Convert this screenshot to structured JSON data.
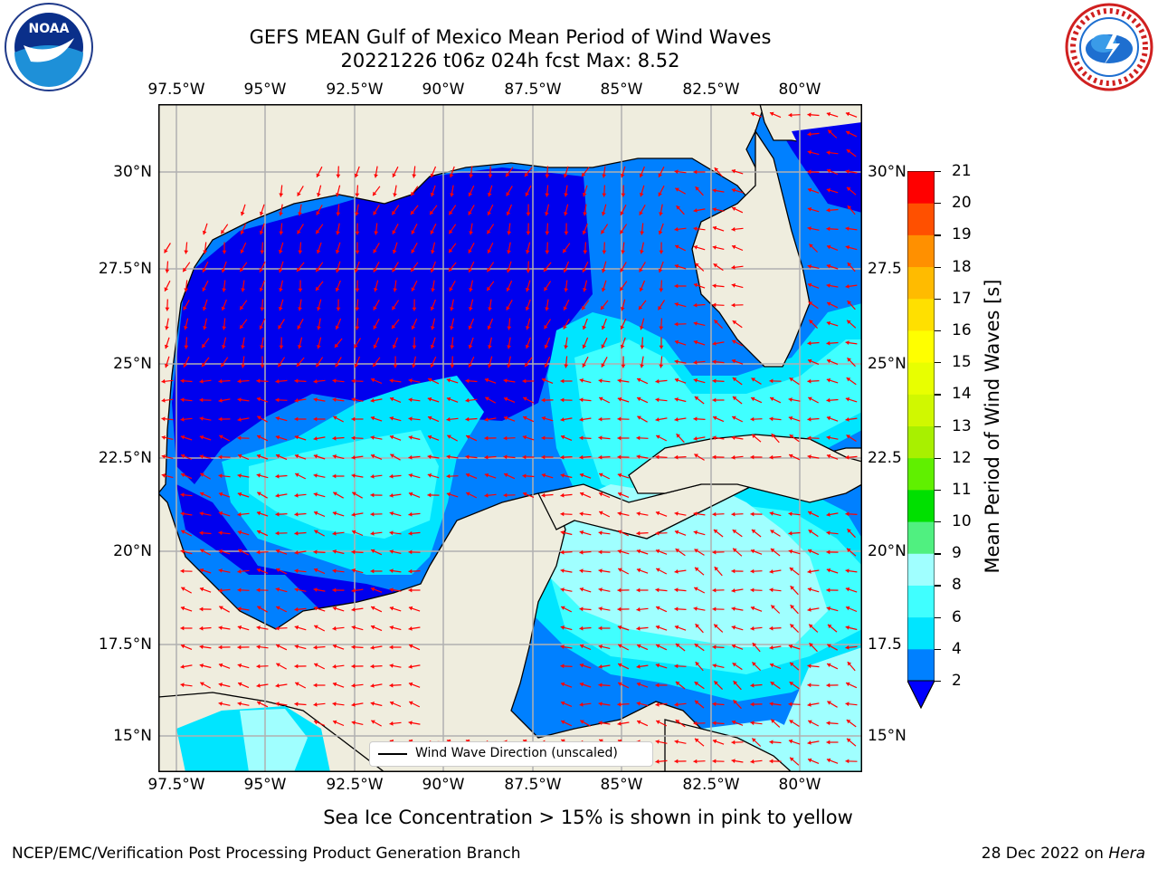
{
  "header": {
    "title_line1": "GEFS MEAN Gulf of Mexico Mean Period of Wind Waves",
    "title_line2": "20221226 t06z 024h fcst   Max: 8.52"
  },
  "map": {
    "region": "Gulf of Mexico",
    "lon_range": [
      -98.5,
      -78.8
    ],
    "lat_range": [
      14,
      31.8
    ],
    "lon_ticks": [
      "97.5°W",
      "95°W",
      "92.5°W",
      "90°W",
      "87.5°W",
      "85°W",
      "82.5°W",
      "80°W"
    ],
    "lat_ticks_left": [
      "30°N",
      "27.5°N",
      "25°N",
      "22.5°N",
      "20°N",
      "17.5°N",
      "15°N"
    ],
    "lat_ticks_right": [
      "30°N",
      "27.5",
      "25°N",
      "22.5",
      "20°N",
      "17.5",
      "15°N"
    ],
    "land_color": "#efedde",
    "coast_color": "#000000",
    "arrow_color": "#ff0000",
    "grid": true
  },
  "legend": {
    "entry": "Wind Wave Direction (unscaled)"
  },
  "colorbar": {
    "label": "Mean Period of Wind Waves [s]",
    "ticks": [
      "2",
      "4",
      "6",
      "8",
      "9",
      "10",
      "11",
      "12",
      "13",
      "14",
      "15",
      "16",
      "17",
      "18",
      "19",
      "20",
      "21"
    ],
    "colors": [
      "#0080ff",
      "#00e5ff",
      "#40ffff",
      "#a0ffff",
      "#50f080",
      "#00e000",
      "#60f000",
      "#a8f000",
      "#d0f800",
      "#e8ff00",
      "#ffff00",
      "#ffe000",
      "#ffbb00",
      "#ff9000",
      "#ff5000",
      "#ff0000"
    ],
    "extend_color": "#0000ff"
  },
  "note": "Sea Ice Concentration > 15% is shown in pink to yellow",
  "footer": {
    "credit_left": "NCEP/EMC/Verification Post Processing Product Generation Branch",
    "credit_right_prefix": "28 Dec 2022 on",
    "credit_right_host": "Hera"
  },
  "logos": {
    "left": "noaa-logo",
    "right": "nws-logo"
  }
}
